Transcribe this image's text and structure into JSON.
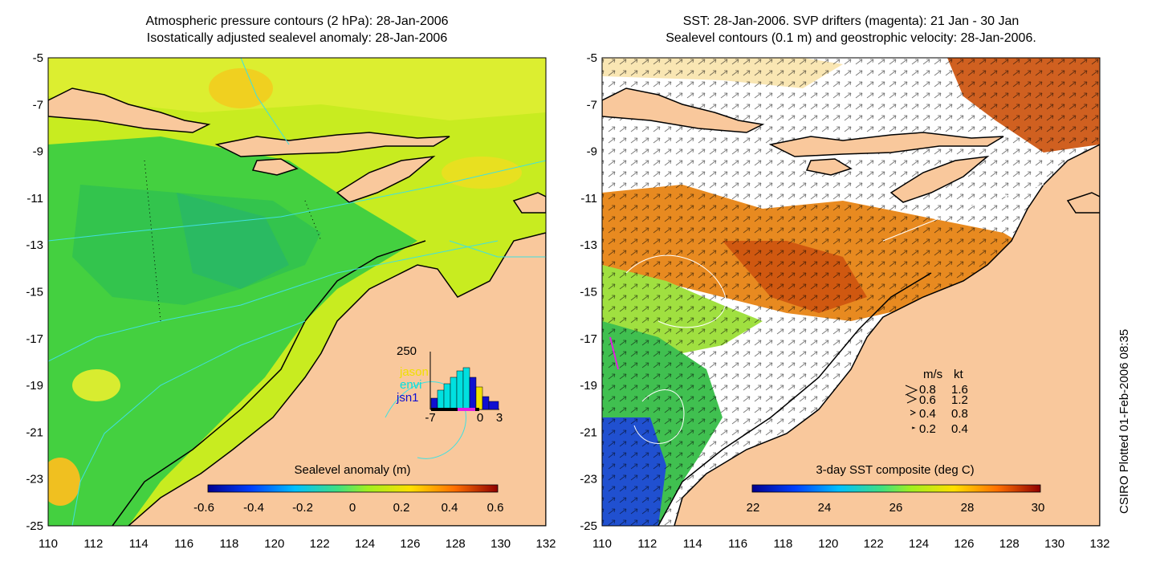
{
  "left_panel": {
    "title_line1": "Atmospheric pressure contours (2 hPa): 28-Jan-2006",
    "title_line2": "Isostatically adjusted sealevel anomaly: 28-Jan-2006",
    "colorbar_label": "Sealevel anomaly (m)",
    "colorbar_ticks": [
      "-0.6",
      "-0.4",
      "-0.2",
      "0",
      "0.2",
      "0.4",
      "0.6"
    ],
    "inset": {
      "y_top_label": "250",
      "legend": [
        {
          "label": "jason",
          "color": "#f0e000"
        },
        {
          "label": "envi",
          "color": "#00e0e0"
        },
        {
          "label": "jsn1",
          "color": "#1010d0"
        }
      ],
      "x_ticks": [
        "-7",
        "0",
        "3"
      ]
    }
  },
  "right_panel": {
    "title_line1": "SST: 28-Jan-2006. SVP drifters (magenta): 21 Jan - 30 Jan",
    "title_line2": "Sealevel contours (0.1 m) and geostrophic velocity: 28-Jan-2006.",
    "colorbar_label": "3-day SST composite (deg C)",
    "colorbar_ticks": [
      "22",
      "24",
      "26",
      "28",
      "30"
    ],
    "speed_legend": {
      "header_ms": "m/s",
      "header_kt": "kt",
      "rows": [
        {
          "ms": "0.8",
          "kt": "1.6"
        },
        {
          "ms": "0.6",
          "kt": "1.2"
        },
        {
          "ms": "0.4",
          "kt": "0.8"
        },
        {
          "ms": "0.2",
          "kt": "0.4"
        }
      ]
    }
  },
  "axes": {
    "y_ticks": [
      "-5",
      "-7",
      "-9",
      "-11",
      "-13",
      "-15",
      "-17",
      "-19",
      "-21",
      "-23",
      "-25"
    ],
    "x_ticks": [
      "110",
      "112",
      "114",
      "116",
      "118",
      "120",
      "122",
      "124",
      "126",
      "128",
      "130",
      "132"
    ]
  },
  "credit": "CSIRO Plotted 01-Feb-2006 08:35",
  "colors": {
    "land": "#f9c89c",
    "anomaly_green": "#3ccc3c",
    "anomaly_yellow": "#d8f020",
    "sst_orange": "#e07018",
    "sst_blue": "#2050d0"
  }
}
